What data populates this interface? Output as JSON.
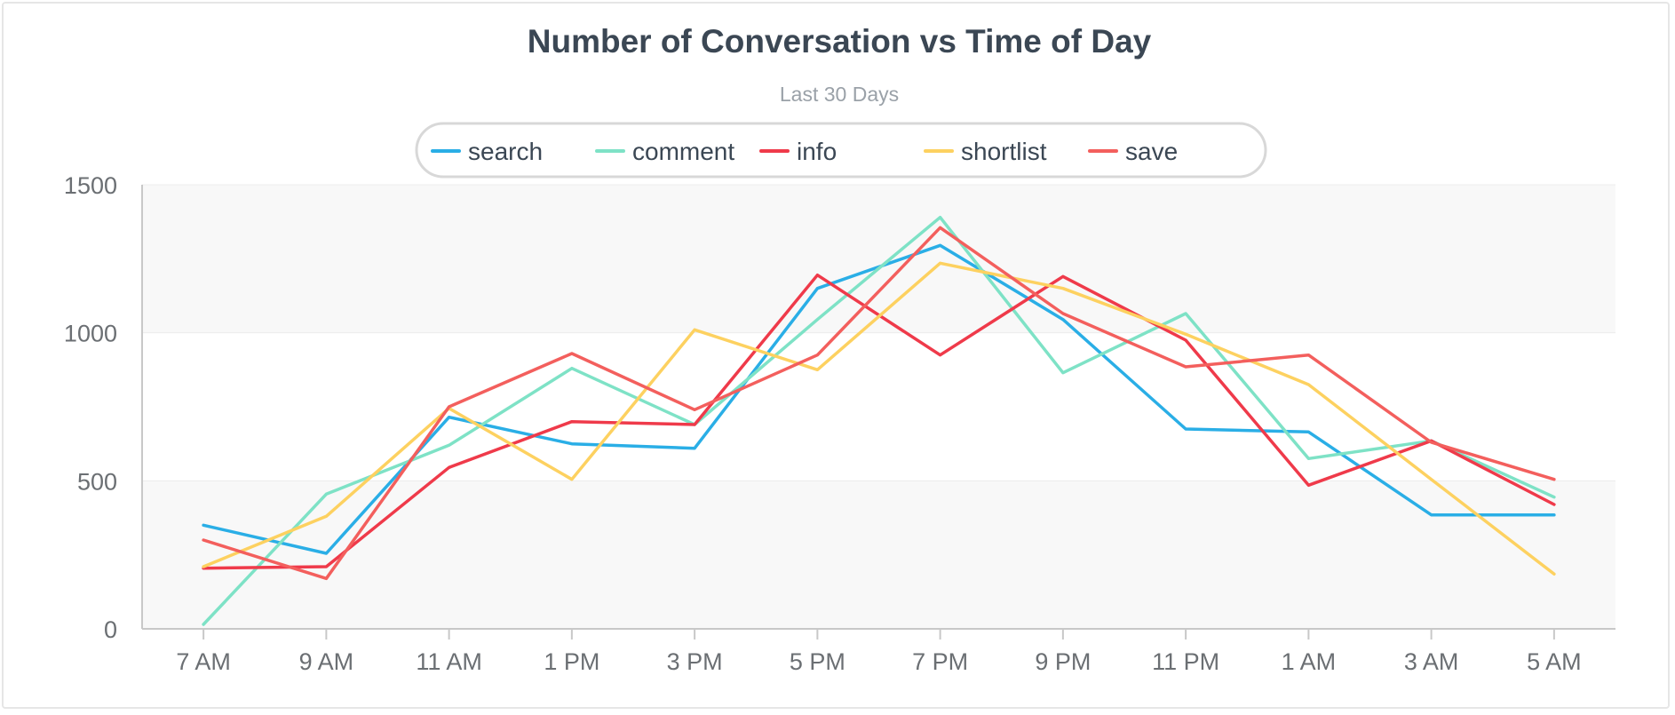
{
  "chart_data": {
    "type": "line",
    "title": "Number of Conversation vs Time of Day",
    "subtitle": "Last 30 Days",
    "xlabel": "",
    "ylabel": "",
    "categories": [
      "7 AM",
      "9 AM",
      "11 AM",
      "1 PM",
      "3 PM",
      "5 PM",
      "7 PM",
      "9 PM",
      "11 PM",
      "1 AM",
      "3 AM",
      "5 AM"
    ],
    "ylim": [
      0,
      1500
    ],
    "yticks": [
      "0",
      "500",
      "1000",
      "1500"
    ],
    "grid": true,
    "legend_position": "top-center",
    "series": [
      {
        "name": "search",
        "color": "#2aaee6",
        "values": [
          350,
          255,
          715,
          625,
          610,
          1150,
          1295,
          1045,
          675,
          665,
          385,
          385
        ]
      },
      {
        "name": "comment",
        "color": "#7ee2c6",
        "values": [
          15,
          455,
          620,
          880,
          690,
          1045,
          1390,
          865,
          1065,
          575,
          635,
          445
        ]
      },
      {
        "name": "info",
        "color": "#ef3a4a",
        "values": [
          205,
          210,
          545,
          700,
          690,
          1195,
          925,
          1190,
          975,
          485,
          635,
          420
        ]
      },
      {
        "name": "shortlist",
        "color": "#fdd160",
        "values": [
          210,
          380,
          745,
          505,
          1010,
          875,
          1235,
          1150,
          995,
          825,
          505,
          185
        ]
      },
      {
        "name": "save",
        "color": "#f35f5d",
        "values": [
          300,
          170,
          750,
          930,
          740,
          925,
          1355,
          1065,
          885,
          925,
          630,
          505
        ]
      }
    ]
  }
}
